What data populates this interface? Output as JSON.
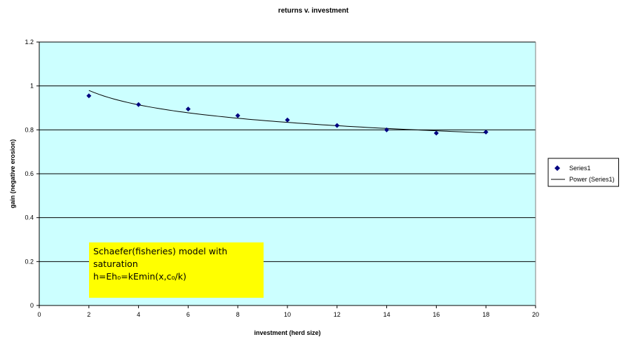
{
  "chart_data": {
    "type": "scatter",
    "title": "returns v. investment",
    "xlabel": "investment (herd size)",
    "ylabel": "gain (negative erosion)",
    "xlim": [
      0,
      20
    ],
    "ylim": [
      0,
      1.2
    ],
    "xticks": [
      0,
      2,
      4,
      6,
      8,
      10,
      12,
      14,
      16,
      18,
      20
    ],
    "yticks": [
      0,
      0.2,
      0.4,
      0.6,
      0.8,
      1,
      1.2
    ],
    "xtick_labels": [
      "0",
      "2",
      "4",
      "6",
      "8",
      "10",
      "12",
      "14",
      "16",
      "18",
      "20"
    ],
    "ytick_labels": [
      "0",
      "0.2",
      "0.4",
      "0.6",
      "0.8",
      "1",
      "1.2"
    ],
    "grid": "horizontal",
    "plot_background": "#ccffff",
    "series": [
      {
        "name": "Series1",
        "marker": "diamond",
        "color": "#000080",
        "x": [
          2,
          4,
          6,
          8,
          10,
          12,
          14,
          16,
          18
        ],
        "y": [
          0.955,
          0.915,
          0.895,
          0.865,
          0.845,
          0.82,
          0.8,
          0.785,
          0.79
        ]
      }
    ],
    "trendline": {
      "name": "Power (Series1)",
      "type": "power",
      "color": "#000000",
      "a": 1.05,
      "b": -0.1
    },
    "legend": {
      "position": "right",
      "entries": [
        "Series1",
        "Power (Series1)"
      ]
    },
    "annotation": {
      "lines": [
        "Schaefer(fisheries) model with",
        "saturation",
        "h=Eh₀=kEmin(x,c₀/k)"
      ],
      "background": "#ffff00"
    }
  }
}
